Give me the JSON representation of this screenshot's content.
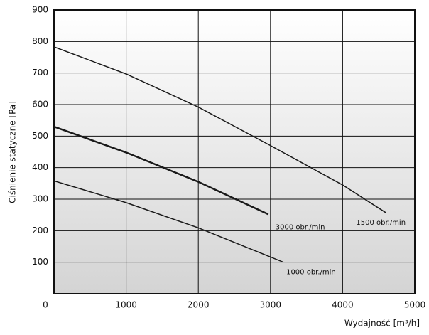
{
  "chart_data": {
    "type": "line",
    "y_label": "Ciśnienie statyczne [Pa]",
    "x_label": "Wydajność [m³/h]",
    "xlim": [
      0,
      5000
    ],
    "xticks": [
      0,
      1000,
      2000,
      3000,
      4000,
      5000
    ],
    "ylim": [
      0,
      900
    ],
    "yticks": [
      100,
      200,
      300,
      400,
      500,
      600,
      700,
      800,
      900
    ],
    "grid": true,
    "series": [
      {
        "name": "3000 obr./min",
        "color": "#1a1a1a",
        "x": [
          0,
          1000,
          2000,
          2970
        ],
        "values": [
          530,
          448,
          355,
          252
        ]
      },
      {
        "name": "1500 obr./min",
        "color": "#1a1a1a",
        "x": [
          0,
          1000,
          2000,
          3000,
          4000,
          4600
        ],
        "values": [
          783,
          697,
          592,
          470,
          345,
          257
        ]
      },
      {
        "name": "1000 obr./min",
        "color": "#1a1a1a",
        "x": [
          0,
          1000,
          2000,
          3180
        ],
        "values": [
          358,
          289,
          209,
          100
        ]
      }
    ]
  }
}
